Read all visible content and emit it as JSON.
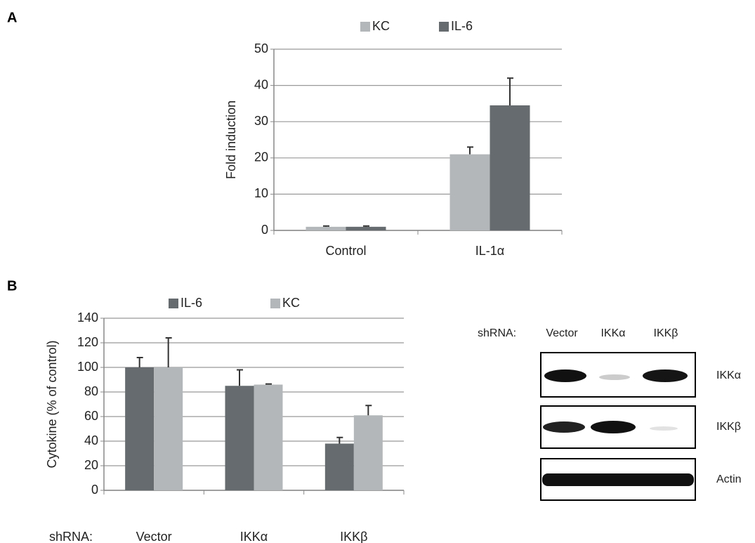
{
  "panels": [
    "A",
    "B"
  ],
  "chart_data": [
    {
      "type": "bar",
      "ylabel": "Fold induction",
      "categories": [
        "Control",
        "IL-1α"
      ],
      "series": [
        {
          "name": "KC",
          "color": "#b4b7b9",
          "values": [
            1,
            21
          ],
          "errors": [
            0.2,
            2
          ]
        },
        {
          "name": "IL-6",
          "color": "#656b6e",
          "values": [
            1,
            34.5
          ],
          "errors": [
            0.2,
            7.5
          ]
        }
      ],
      "ylim": [
        0,
        50
      ],
      "yticks": [
        0,
        10,
        20,
        30,
        40,
        50
      ],
      "grid": true
    },
    {
      "type": "bar",
      "ylabel": "Cytokine (% of control)",
      "xlabel": "shRNA:",
      "categories": [
        "Vector",
        "IKKα",
        "IKKβ"
      ],
      "series": [
        {
          "name": "IL-6",
          "color": "#656b6e",
          "values": [
            100,
            85,
            38
          ],
          "errors": [
            8,
            13,
            5
          ]
        },
        {
          "name": "KC",
          "color": "#b4b7b9",
          "values": [
            100,
            86,
            61
          ],
          "errors": [
            24,
            0.5,
            8
          ]
        }
      ],
      "ylim": [
        0,
        140
      ],
      "yticks": [
        0,
        20,
        40,
        60,
        80,
        100,
        120,
        140
      ],
      "grid": true
    }
  ],
  "blot": {
    "row_label": "shRNA:",
    "lanes": [
      "Vector",
      "IKKα",
      "IKKβ"
    ],
    "proteins": [
      "IKKα",
      "IKKβ",
      "Actin"
    ]
  }
}
